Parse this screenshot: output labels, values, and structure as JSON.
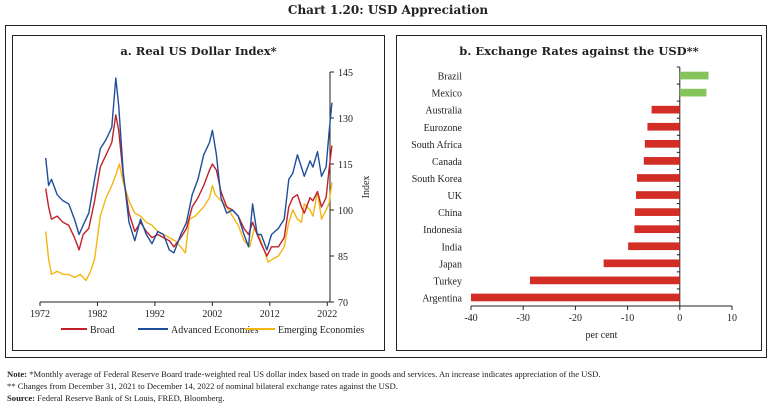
{
  "title": "Chart 1.20: USD Appreciation",
  "notes": {
    "note_label": "Note:",
    "note_line1": "*Monthly average of Federal Reserve Board trade-weighted real US dollar index based on trade in goods and services. An increase indicates appreciation of the USD.",
    "note_line2": "** Changes from December 31, 2021 to December 14, 2022 of nominal bilateral exchange rates against the USD.",
    "source_label": "Source:",
    "source_text": "Federal Reserve Bank of St Louis, FRED, Bloomberg."
  },
  "chart_data": [
    {
      "type": "line",
      "title": "a. Real US Dollar Index*",
      "xlabel": "",
      "ylabel": "Index",
      "xlim": [
        1972,
        2023
      ],
      "ylim": [
        70,
        145
      ],
      "xticks": [
        1972,
        1982,
        1992,
        2002,
        2012,
        2022
      ],
      "yticks": [
        70,
        85,
        100,
        115,
        130,
        145
      ],
      "y_axis_side": "right",
      "legend_position": "bottom",
      "grid": false,
      "series": [
        {
          "name": "Broad",
          "color": "#c0202a",
          "x": [
            1973.0,
            1973.5,
            1974.0,
            1975.0,
            1976.0,
            1977.0,
            1978.0,
            1978.8,
            1979.5,
            1980.5,
            1981.5,
            1982.5,
            1983.5,
            1984.5,
            1985.2,
            1985.7,
            1986.5,
            1987.5,
            1988.5,
            1989.5,
            1990.5,
            1991.5,
            1992.5,
            1993.5,
            1994.5,
            1995.3,
            1996.5,
            1997.5,
            1998.5,
            1999.5,
            2000.5,
            2001.5,
            2002.0,
            2002.7,
            2003.5,
            2004.5,
            2005.5,
            2006.5,
            2007.5,
            2008.3,
            2009.0,
            2009.8,
            2010.5,
            2011.5,
            2012.3,
            2013.5,
            2014.5,
            2015.3,
            2016.0,
            2016.8,
            2017.5,
            2018.0,
            2019.0,
            2019.5,
            2020.3,
            2021.0,
            2021.8,
            2022.3,
            2022.8
          ],
          "values": [
            107,
            101,
            97,
            98,
            96,
            95,
            91,
            87,
            92,
            94,
            103,
            114,
            118,
            122,
            131,
            126,
            111,
            99,
            93,
            96,
            93,
            91,
            92,
            91,
            90,
            88,
            91,
            94,
            101,
            104,
            108,
            113,
            115,
            113,
            106,
            101,
            100,
            98,
            94,
            92,
            96,
            92,
            89,
            85,
            88,
            88,
            91,
            101,
            104,
            105,
            101,
            99,
            104,
            103,
            106,
            101,
            104,
            113,
            121
          ]
        },
        {
          "name": "Advanced Economies",
          "color": "#1f4e9a",
          "x": [
            1973.0,
            1973.5,
            1974.0,
            1975.0,
            1976.0,
            1977.0,
            1978.0,
            1978.8,
            1979.5,
            1980.5,
            1981.5,
            1982.5,
            1983.5,
            1984.5,
            1985.2,
            1985.7,
            1986.5,
            1987.5,
            1988.5,
            1989.5,
            1990.5,
            1991.5,
            1992.5,
            1993.5,
            1994.5,
            1995.3,
            1996.5,
            1997.5,
            1998.5,
            1999.5,
            2000.5,
            2001.5,
            2002.0,
            2002.7,
            2003.5,
            2004.5,
            2005.5,
            2006.5,
            2007.5,
            2008.3,
            2009.0,
            2009.8,
            2010.5,
            2011.5,
            2012.3,
            2013.5,
            2014.5,
            2015.3,
            2016.0,
            2016.8,
            2017.5,
            2018.0,
            2019.0,
            2019.5,
            2020.3,
            2021.0,
            2021.8,
            2022.3,
            2022.8
          ],
          "values": [
            117,
            108,
            110,
            105,
            103,
            102,
            97,
            92,
            95,
            99,
            110,
            120,
            123,
            127,
            143,
            134,
            112,
            96,
            90,
            97,
            92,
            89,
            93,
            92,
            87,
            86,
            92,
            96,
            105,
            110,
            118,
            122,
            126,
            118,
            104,
            99,
            100,
            98,
            92,
            88,
            102,
            92,
            92,
            87,
            92,
            94,
            97,
            110,
            112,
            118,
            114,
            111,
            116,
            114,
            119,
            111,
            114,
            125,
            135
          ]
        },
        {
          "name": "Emerging Economies",
          "color": "#f5b514",
          "x": [
            1973.0,
            1973.5,
            1974.0,
            1975.0,
            1976.0,
            1977.0,
            1978.0,
            1979.0,
            1980.0,
            1980.8,
            1981.5,
            1982.5,
            1983.5,
            1984.5,
            1985.3,
            1985.8,
            1986.5,
            1987.5,
            1988.5,
            1989.5,
            1990.5,
            1991.5,
            1992.5,
            1993.5,
            1994.5,
            1995.5,
            1996.5,
            1997.3,
            1998.0,
            1999.0,
            2000.5,
            2001.5,
            2002.0,
            2002.5,
            2003.5,
            2004.5,
            2005.5,
            2006.5,
            2007.5,
            2008.5,
            2009.3,
            2010.0,
            2011.0,
            2011.7,
            2012.5,
            2013.5,
            2014.5,
            2015.3,
            2016.0,
            2016.8,
            2017.5,
            2018.0,
            2019.0,
            2019.5,
            2020.3,
            2021.0,
            2021.8,
            2022.3,
            2022.8
          ],
          "values": [
            93,
            84,
            79,
            80,
            79,
            79,
            78,
            79,
            77,
            80,
            84,
            98,
            104,
            108,
            112,
            115,
            109,
            103,
            99,
            98,
            96,
            95,
            93,
            92,
            91,
            90,
            88,
            86,
            97,
            98,
            101,
            104,
            108,
            105,
            103,
            101,
            98,
            95,
            90,
            88,
            94,
            92,
            87,
            83,
            84,
            85,
            88,
            96,
            100,
            97,
            96,
            102,
            100,
            98,
            106,
            97,
            100,
            102,
            109
          ]
        }
      ]
    },
    {
      "type": "bar",
      "orientation": "horizontal",
      "title": "b. Exchange Rates against the USD**",
      "xlabel": "per cent",
      "ylabel": "",
      "xlim": [
        -40,
        10
      ],
      "xticks": [
        -40,
        -30,
        -20,
        -10,
        0,
        10
      ],
      "grid": false,
      "positive_color": "#84c45a",
      "negative_color": "#d22e26",
      "categories": [
        "Brazil",
        "Mexico",
        "Australia",
        "Eurozone",
        "South Africa",
        "Canada",
        "South Korea",
        "UK",
        "China",
        "Indonesia",
        "India",
        "Japan",
        "Turkey",
        "Argentina"
      ],
      "values": [
        5.5,
        5.1,
        -5.4,
        -6.2,
        -6.7,
        -6.9,
        -8.2,
        -8.4,
        -8.6,
        -8.7,
        -9.9,
        -14.6,
        -28.7,
        -40.0
      ]
    }
  ]
}
